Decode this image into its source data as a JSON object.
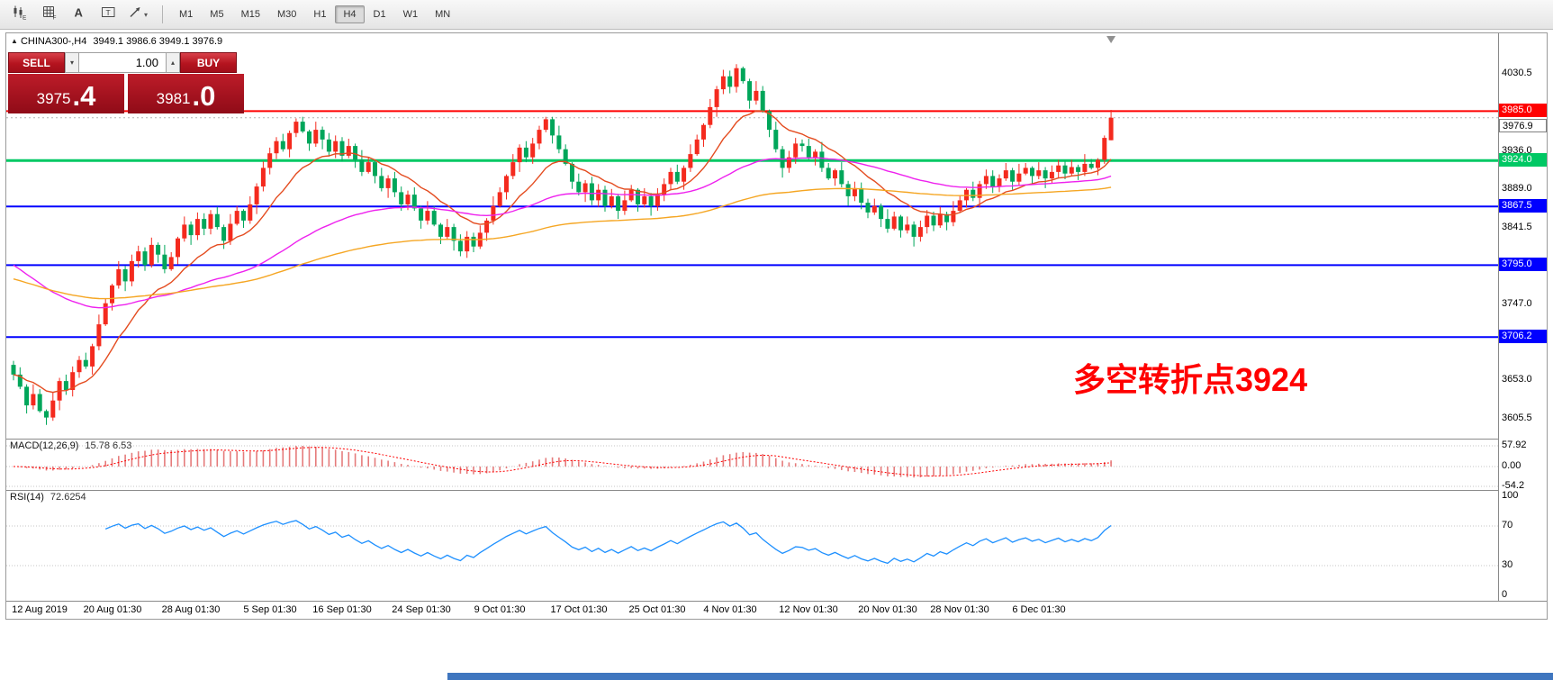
{
  "app": {
    "toolbar": {
      "tools": [
        {
          "id": "chart-tools",
          "icon": "candlestick-chart-icon"
        },
        {
          "id": "indicator-grid",
          "icon": "grid-icon"
        },
        {
          "id": "text-tool",
          "icon": "text-icon"
        },
        {
          "id": "textbox-tool",
          "icon": "textbox-icon"
        },
        {
          "id": "drawing-tools",
          "icon": "trendline-arrow-icon",
          "caret": "▾"
        }
      ],
      "timeframes": [
        "M1",
        "M5",
        "M15",
        "M30",
        "H1",
        "H4",
        "D1",
        "W1",
        "MN"
      ],
      "active_timeframe": "H4"
    }
  },
  "chart": {
    "header": {
      "marker": "▲",
      "symbol": "CHINA300-,H4",
      "ohlc": "3949.1 3986.6 3949.1 3976.9"
    },
    "trade_panel": {
      "sell_label": "SELL",
      "buy_label": "BUY",
      "volume": "1.00",
      "step_down_icon": "▾",
      "step_up_icon": "▴",
      "sell_price": {
        "small": "3975",
        "big": ".4"
      },
      "buy_price": {
        "small": "3981",
        "big": ".0"
      }
    },
    "annotation": {
      "text": "多空转折点3924",
      "color": "#ff0000"
    },
    "current_price": 3976.9,
    "hlines": [
      {
        "price": 3985.0,
        "color": "#ff0000",
        "width": 2
      },
      {
        "price": 3924.0,
        "color": "#00c864",
        "width": 3
      },
      {
        "price": 3867.5,
        "color": "#0000ff",
        "width": 2
      },
      {
        "price": 3795.0,
        "color": "#0000ff",
        "width": 2
      },
      {
        "price": 3706.2,
        "color": "#0000ff",
        "width": 2
      }
    ],
    "axis": {
      "tags": [
        {
          "value": "3985.0",
          "price": 3985.0,
          "bg": "#ff0000",
          "fg": "#ffffff"
        },
        {
          "value": "3976.9",
          "price": 3976.9,
          "bg": "#ffffff",
          "fg": "#000000",
          "border": "#808080",
          "dy": 9
        },
        {
          "value": "3924.0",
          "price": 3924.0,
          "bg": "#00c864",
          "fg": "#ffffff"
        },
        {
          "value": "3867.5",
          "price": 3867.5,
          "bg": "#0000ff",
          "fg": "#ffffff"
        },
        {
          "value": "3795.0",
          "price": 3795.0,
          "bg": "#0000ff",
          "fg": "#ffffff"
        },
        {
          "value": "3706.2",
          "price": 3706.2,
          "bg": "#0000ff",
          "fg": "#ffffff"
        }
      ]
    }
  },
  "chart_data": {
    "type": "candlestick",
    "symbol": "CHINA300-",
    "timeframe": "H4",
    "title": "CHINA300-,H4",
    "ylim": [
      3581,
      4081
    ],
    "price_axis_ticks": [
      "4030.5",
      "3936.0",
      "3889.0",
      "3841.5",
      "3747.0",
      "3653.0",
      "3605.5"
    ],
    "up_color": "#f42a1e",
    "down_color": "#00a65a",
    "candles": [
      [
        3672,
        3677,
        3653,
        3660
      ],
      [
        3660,
        3669,
        3642,
        3645
      ],
      [
        3645,
        3648,
        3612,
        3622
      ],
      [
        3622,
        3648,
        3617,
        3636
      ],
      [
        3636,
        3642,
        3613,
        3615
      ],
      [
        3615,
        3617,
        3598,
        3607
      ],
      [
        3607,
        3638,
        3603,
        3628
      ],
      [
        3628,
        3656,
        3616,
        3652
      ],
      [
        3652,
        3660,
        3635,
        3641
      ],
      [
        3641,
        3670,
        3633,
        3663
      ],
      [
        3663,
        3683,
        3656,
        3678
      ],
      [
        3678,
        3687,
        3667,
        3670
      ],
      [
        3670,
        3698,
        3660,
        3695
      ],
      [
        3695,
        3734,
        3690,
        3722
      ],
      [
        3722,
        3754,
        3720,
        3748
      ],
      [
        3748,
        3772,
        3739,
        3770
      ],
      [
        3770,
        3800,
        3766,
        3790
      ],
      [
        3790,
        3794,
        3763,
        3775
      ],
      [
        3775,
        3808,
        3769,
        3800
      ],
      [
        3800,
        3819,
        3792,
        3812
      ],
      [
        3812,
        3817,
        3788,
        3795
      ],
      [
        3795,
        3829,
        3792,
        3820
      ],
      [
        3820,
        3823,
        3798,
        3808
      ],
      [
        3808,
        3820,
        3785,
        3790
      ],
      [
        3790,
        3811,
        3788,
        3805
      ],
      [
        3805,
        3830,
        3796,
        3828
      ],
      [
        3828,
        3855,
        3824,
        3845
      ],
      [
        3845,
        3849,
        3820,
        3832
      ],
      [
        3832,
        3860,
        3826,
        3852
      ],
      [
        3852,
        3859,
        3832,
        3840
      ],
      [
        3840,
        3863,
        3833,
        3858
      ],
      [
        3858,
        3867,
        3839,
        3842
      ],
      [
        3842,
        3845,
        3815,
        3825
      ],
      [
        3825,
        3858,
        3820,
        3846
      ],
      [
        3846,
        3868,
        3844,
        3862
      ],
      [
        3862,
        3864,
        3841,
        3850
      ],
      [
        3850,
        3880,
        3846,
        3870
      ],
      [
        3870,
        3896,
        3858,
        3892
      ],
      [
        3892,
        3923,
        3886,
        3915
      ],
      [
        3915,
        3940,
        3907,
        3933
      ],
      [
        3933,
        3953,
        3926,
        3948
      ],
      [
        3948,
        3957,
        3935,
        3938
      ],
      [
        3938,
        3961,
        3928,
        3958
      ],
      [
        3958,
        3976,
        3953,
        3972
      ],
      [
        3972,
        3978,
        3958,
        3960
      ],
      [
        3960,
        3962,
        3936,
        3945
      ],
      [
        3945,
        3972,
        3941,
        3962
      ],
      [
        3962,
        3966,
        3938,
        3950
      ],
      [
        3950,
        3958,
        3929,
        3935
      ],
      [
        3935,
        3955,
        3927,
        3948
      ],
      [
        3948,
        3953,
        3923,
        3930
      ],
      [
        3930,
        3951,
        3927,
        3942
      ],
      [
        3942,
        3945,
        3915,
        3925
      ],
      [
        3925,
        3937,
        3905,
        3910
      ],
      [
        3910,
        3928,
        3908,
        3922
      ],
      [
        3922,
        3924,
        3896,
        3905
      ],
      [
        3905,
        3915,
        3886,
        3890
      ],
      [
        3890,
        3906,
        3878,
        3902
      ],
      [
        3902,
        3910,
        3879,
        3885
      ],
      [
        3885,
        3892,
        3862,
        3870
      ],
      [
        3870,
        3887,
        3863,
        3882
      ],
      [
        3882,
        3891,
        3862,
        3865
      ],
      [
        3865,
        3868,
        3840,
        3850
      ],
      [
        3850,
        3874,
        3845,
        3862
      ],
      [
        3862,
        3868,
        3843,
        3845
      ],
      [
        3845,
        3847,
        3821,
        3830
      ],
      [
        3830,
        3852,
        3826,
        3842
      ],
      [
        3842,
        3846,
        3813,
        3825
      ],
      [
        3825,
        3833,
        3806,
        3812
      ],
      [
        3812,
        3837,
        3804,
        3830
      ],
      [
        3830,
        3835,
        3811,
        3818
      ],
      [
        3818,
        3844,
        3815,
        3835
      ],
      [
        3835,
        3853,
        3825,
        3850
      ],
      [
        3850,
        3880,
        3845,
        3868
      ],
      [
        3868,
        3891,
        3866,
        3885
      ],
      [
        3885,
        3907,
        3876,
        3905
      ],
      [
        3905,
        3932,
        3901,
        3922
      ],
      [
        3922,
        3944,
        3910,
        3940
      ],
      [
        3940,
        3948,
        3922,
        3928
      ],
      [
        3928,
        3952,
        3920,
        3945
      ],
      [
        3945,
        3967,
        3938,
        3962
      ],
      [
        3962,
        3978,
        3959,
        3975
      ],
      [
        3975,
        3978,
        3945,
        3955
      ],
      [
        3955,
        3967,
        3933,
        3938
      ],
      [
        3938,
        3944,
        3918,
        3920
      ],
      [
        3920,
        3922,
        3889,
        3898
      ],
      [
        3898,
        3908,
        3881,
        3885
      ],
      [
        3885,
        3900,
        3873,
        3896
      ],
      [
        3896,
        3904,
        3869,
        3875
      ],
      [
        3875,
        3895,
        3867,
        3888
      ],
      [
        3888,
        3893,
        3861,
        3868
      ],
      [
        3868,
        3889,
        3865,
        3880
      ],
      [
        3880,
        3883,
        3852,
        3862
      ],
      [
        3862,
        3887,
        3857,
        3875
      ],
      [
        3875,
        3894,
        3873,
        3888
      ],
      [
        3888,
        3890,
        3861,
        3870
      ],
      [
        3870,
        3890,
        3866,
        3880
      ],
      [
        3880,
        3884,
        3856,
        3868
      ],
      [
        3868,
        3890,
        3862,
        3882
      ],
      [
        3882,
        3902,
        3874,
        3895
      ],
      [
        3895,
        3915,
        3888,
        3910
      ],
      [
        3910,
        3919,
        3895,
        3898
      ],
      [
        3898,
        3918,
        3888,
        3915
      ],
      [
        3915,
        3944,
        3910,
        3932
      ],
      [
        3932,
        3956,
        3930,
        3950
      ],
      [
        3950,
        3970,
        3941,
        3968
      ],
      [
        3968,
        4000,
        3964,
        3990
      ],
      [
        3990,
        4016,
        3978,
        4012
      ],
      [
        4012,
        4036,
        4006,
        4028
      ],
      [
        4028,
        4035,
        4007,
        4015
      ],
      [
        4015,
        4043,
        4008,
        4038
      ],
      [
        4038,
        4040,
        4019,
        4022
      ],
      [
        4022,
        4025,
        3988,
        3998
      ],
      [
        3998,
        4022,
        3993,
        4010
      ],
      [
        4010,
        4016,
        3983,
        3985
      ],
      [
        3985,
        3987,
        3953,
        3962
      ],
      [
        3962,
        3972,
        3934,
        3938
      ],
      [
        3938,
        3942,
        3903,
        3915
      ],
      [
        3915,
        3936,
        3909,
        3928
      ],
      [
        3928,
        3952,
        3920,
        3945
      ],
      [
        3945,
        3950,
        3935,
        3942
      ],
      [
        3942,
        3951,
        3925,
        3928
      ],
      [
        3928,
        3938,
        3918,
        3935
      ],
      [
        3935,
        3947,
        3910,
        3915
      ],
      [
        3915,
        3921,
        3900,
        3902
      ],
      [
        3902,
        3914,
        3893,
        3912
      ],
      [
        3912,
        3922,
        3891,
        3895
      ],
      [
        3895,
        3899,
        3868,
        3880
      ],
      [
        3880,
        3898,
        3874,
        3890
      ],
      [
        3890,
        3897,
        3864,
        3872
      ],
      [
        3872,
        3877,
        3853,
        3860
      ],
      [
        3860,
        3877,
        3857,
        3868
      ],
      [
        3868,
        3871,
        3842,
        3852
      ],
      [
        3852,
        3864,
        3835,
        3840
      ],
      [
        3840,
        3861,
        3838,
        3855
      ],
      [
        3855,
        3857,
        3829,
        3838
      ],
      [
        3838,
        3855,
        3834,
        3845
      ],
      [
        3845,
        3849,
        3818,
        3830
      ],
      [
        3830,
        3850,
        3824,
        3842
      ],
      [
        3842,
        3863,
        3834,
        3856
      ],
      [
        3856,
        3861,
        3837,
        3844
      ],
      [
        3844,
        3867,
        3841,
        3858
      ],
      [
        3858,
        3861,
        3838,
        3848
      ],
      [
        3848,
        3874,
        3843,
        3862
      ],
      [
        3862,
        3881,
        3860,
        3875
      ],
      [
        3875,
        3890,
        3866,
        3888
      ],
      [
        3888,
        3898,
        3874,
        3878
      ],
      [
        3878,
        3899,
        3866,
        3895
      ],
      [
        3895,
        3913,
        3889,
        3905
      ],
      [
        3905,
        3912,
        3884,
        3892
      ],
      [
        3892,
        3907,
        3885,
        3902
      ],
      [
        3902,
        3921,
        3899,
        3912
      ],
      [
        3912,
        3915,
        3888,
        3898
      ],
      [
        3898,
        3920,
        3893,
        3908
      ],
      [
        3908,
        3921,
        3906,
        3915
      ],
      [
        3915,
        3917,
        3896,
        3905
      ],
      [
        3905,
        3922,
        3901,
        3912
      ],
      [
        3912,
        3916,
        3890,
        3902
      ],
      [
        3902,
        3918,
        3896,
        3910
      ],
      [
        3910,
        3925,
        3902,
        3918
      ],
      [
        3918,
        3923,
        3901,
        3908
      ],
      [
        3908,
        3925,
        3905,
        3916
      ],
      [
        3916,
        3919,
        3900,
        3910
      ],
      [
        3910,
        3932,
        3905,
        3920
      ],
      [
        3920,
        3926,
        3913,
        3915
      ],
      [
        3915,
        3927,
        3906,
        3925
      ],
      [
        3925,
        3955,
        3920,
        3952
      ],
      [
        3949.1,
        3986.6,
        3949.1,
        3976.9
      ]
    ],
    "moving_averages": [
      {
        "period": 13,
        "color": "#e44c20",
        "seed": null
      },
      {
        "period": 55,
        "color": "#ee22ee",
        "seed": 3800
      },
      {
        "period": 120,
        "color": "#f5a623",
        "seed": 3780
      }
    ],
    "x_labels": [
      {
        "label": "12 Aug 2019",
        "bar": 4
      },
      {
        "label": "20 Aug 01:30",
        "bar": 15
      },
      {
        "label": "28 Aug 01:30",
        "bar": 27
      },
      {
        "label": "5 Sep 01:30",
        "bar": 39
      },
      {
        "label": "16 Sep 01:30",
        "bar": 50
      },
      {
        "label": "24 Sep 01:30",
        "bar": 62
      },
      {
        "label": "9 Oct 01:30",
        "bar": 74
      },
      {
        "label": "17 Oct 01:30",
        "bar": 86
      },
      {
        "label": "25 Oct 01:30",
        "bar": 98
      },
      {
        "label": "4 Nov 01:30",
        "bar": 109
      },
      {
        "label": "12 Nov 01:30",
        "bar": 121
      },
      {
        "label": "20 Nov 01:30",
        "bar": 133
      },
      {
        "label": "28 Nov 01:30",
        "bar": 144
      },
      {
        "label": "6 Dec 01:30",
        "bar": 156
      }
    ],
    "indicators": [
      {
        "type": "macd",
        "label": "MACD(12,26,9)",
        "values": "15.78 6.53",
        "params": [
          12,
          26,
          9
        ],
        "scale_labels": [
          "57.92",
          "0.00",
          "-54.2"
        ],
        "bar_color": "#e57b7b",
        "signal_color": "#ff0000"
      },
      {
        "type": "rsi",
        "label": "RSI(14)",
        "values": "72.6254",
        "period": 14,
        "scale_labels": [
          "100",
          "70",
          "30",
          "0"
        ],
        "levels": [
          70,
          30
        ],
        "line_color": "#1e90ff"
      }
    ]
  },
  "bottom": {
    "strip_color": "#3f76bf"
  }
}
